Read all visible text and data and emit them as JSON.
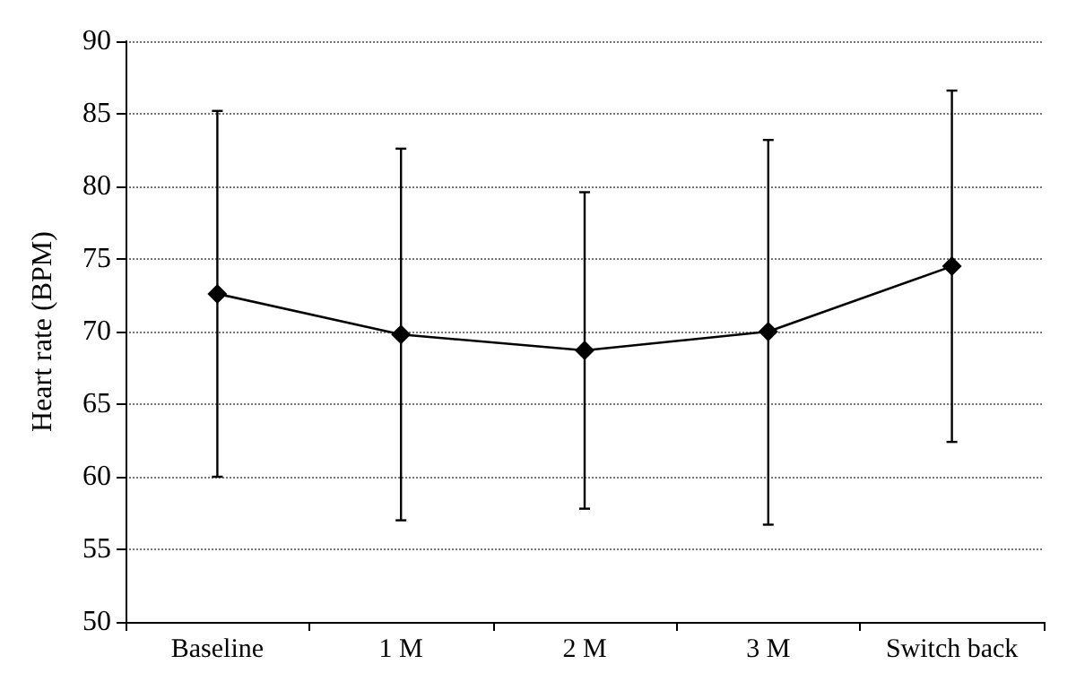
{
  "chart_data": {
    "type": "line",
    "ylabel": "Heart rate (BPM)",
    "categories": [
      "Baseline",
      "1 M",
      "2 M",
      "3 M",
      "Switch back"
    ],
    "values": [
      72.6,
      69.8,
      68.7,
      70.0,
      74.5
    ],
    "errors": [
      [
        60.0,
        85.2
      ],
      [
        57.0,
        82.6
      ],
      [
        57.8,
        79.6
      ],
      [
        56.7,
        83.2
      ],
      [
        62.4,
        86.6
      ]
    ],
    "color": "#000000",
    "ylim": [
      50,
      90
    ],
    "yticks": [
      50,
      55,
      60,
      65,
      70,
      75,
      80,
      85,
      90
    ],
    "grid": "y",
    "marker": "diamond",
    "line_style": "solid"
  }
}
